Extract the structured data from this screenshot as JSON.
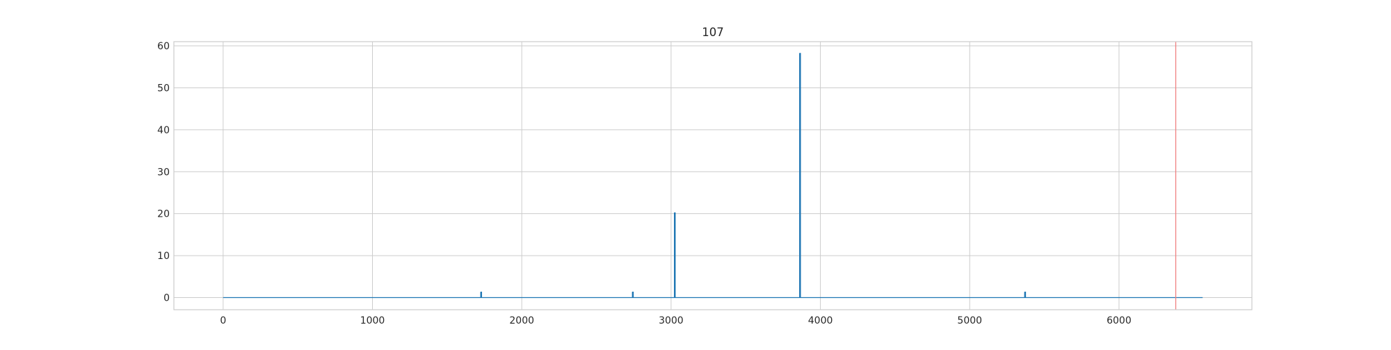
{
  "chart_data": {
    "type": "line",
    "title": "107",
    "xlabel": "",
    "ylabel": "",
    "xlim": [
      -330,
      6890
    ],
    "ylim": [
      -2.9,
      61.0
    ],
    "x_ticks": [
      0,
      1000,
      2000,
      3000,
      4000,
      5000,
      6000
    ],
    "y_ticks": [
      0,
      10,
      20,
      30,
      40,
      50,
      60
    ],
    "grid": true,
    "legend": "none",
    "series": [
      {
        "color": "#1f77b4",
        "x_start": 0,
        "x_end": 6560,
        "baseline": 0,
        "spikes": [
          {
            "x": 1726,
            "y": 1.3
          },
          {
            "x": 2742,
            "y": 1.3
          },
          {
            "x": 3023,
            "y": 20.2
          },
          {
            "x": 3862,
            "y": 58.2
          },
          {
            "x": 5369,
            "y": 1.3
          }
        ]
      }
    ],
    "vertical_lines": [
      {
        "x": 6380,
        "color": "#f08080"
      }
    ]
  }
}
